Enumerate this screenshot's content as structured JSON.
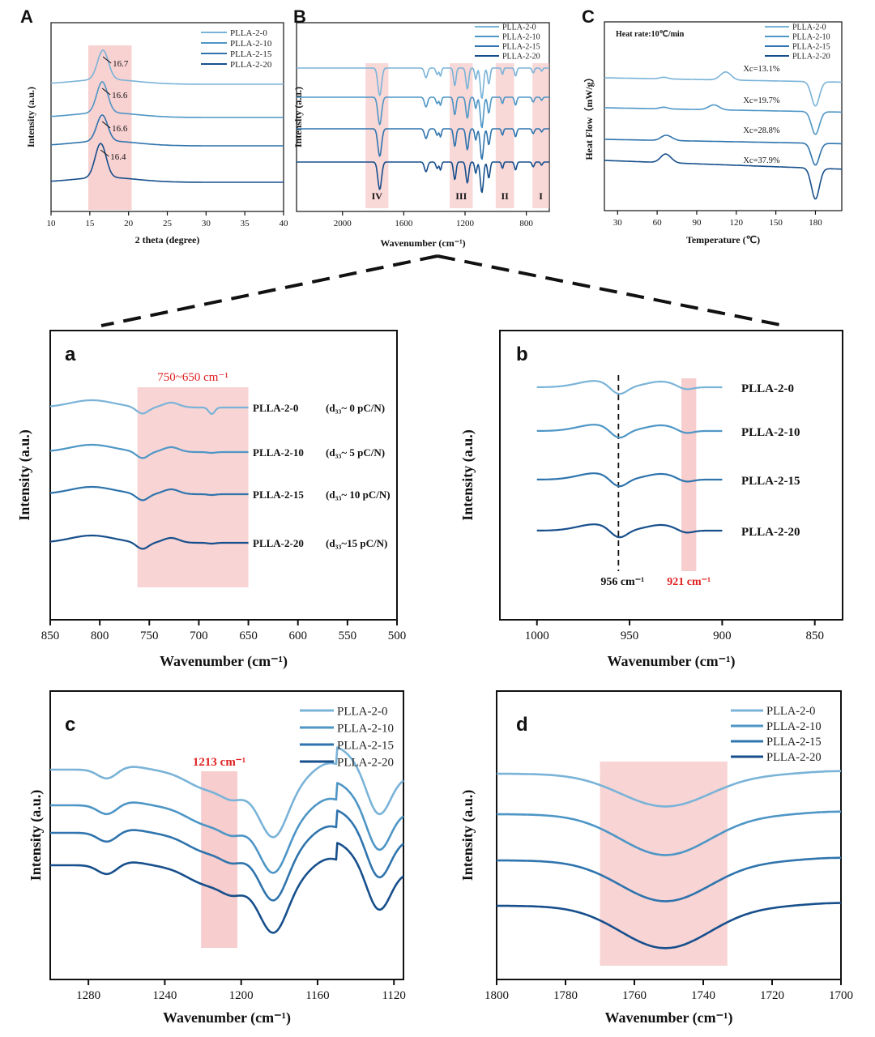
{
  "colors": {
    "s1": "#7ab3d8",
    "s2": "#4e96c6",
    "s3": "#2f74ad",
    "s4": "#174f8c",
    "highlight": "#f4b8b8",
    "red": "#e02020"
  },
  "chart_data": [
    {
      "id": "A",
      "letter": "A",
      "type": "line",
      "xlabel": "2 theta (degree)",
      "ylabel": "Intensity (a.u.)",
      "xlim": [
        10,
        40
      ],
      "xticks": [
        "10",
        "15",
        "20",
        "25",
        "30",
        "35",
        "40"
      ],
      "legend": [
        "PLLA-2-0",
        "PLLA-2-10",
        "PLLA-2-15",
        "PLLA-2-20"
      ],
      "peaks": [
        "16.7",
        "16.6",
        "16.6",
        "16.4"
      ],
      "highlight_range": [
        14.8,
        20.4
      ]
    },
    {
      "id": "B",
      "letter": "B",
      "type": "line",
      "xlabel": "Wavenumber (cm⁻¹)",
      "ylabel": "Intensity (a.u.)",
      "xlim": [
        2300,
        650
      ],
      "xticks": [
        "2000",
        "1600",
        "1200",
        "800"
      ],
      "legend": [
        "PLLA-2-0",
        "PLLA-2-10",
        "PLLA-2-15",
        "PLLA-2-20"
      ],
      "regions": [
        {
          "label": "IV",
          "range": [
            1850,
            1700
          ]
        },
        {
          "label": "III",
          "range": [
            1300,
            1150
          ]
        },
        {
          "label": "II",
          "range": [
            1000,
            880
          ]
        },
        {
          "label": "I",
          "range": [
            760,
            650
          ]
        }
      ]
    },
    {
      "id": "C",
      "letter": "C",
      "type": "line",
      "xlabel": "Temperature (℃)",
      "ylabel": "Heat Flow（mW/g）",
      "xlim": [
        20,
        200
      ],
      "xticks": [
        "30",
        "60",
        "90",
        "120",
        "150",
        "180"
      ],
      "note": "Heat rate:10℃/min",
      "legend": [
        "PLLA-2-0",
        "PLLA-2-10",
        "PLLA-2-15",
        "PLLA-2-20"
      ],
      "xc": [
        "Xc=13.1%",
        "Xc=19.7%",
        "Xc=28.8%",
        "Xc=37.9%"
      ]
    },
    {
      "id": "a",
      "letter": "a",
      "type": "line",
      "xlabel": "Wavenumber (cm⁻¹)",
      "ylabel": "Intensity (a.u.)",
      "xlim": [
        850,
        500
      ],
      "xticks": [
        "850",
        "800",
        "750",
        "700",
        "650",
        "600",
        "550",
        "500"
      ],
      "band_label": "750~650 cm⁻¹",
      "highlight_range": [
        762,
        650
      ],
      "series_labels": [
        "PLLA-2-0",
        "PLLA-2-10",
        "PLLA-2-15",
        "PLLA-2-20"
      ],
      "d33": [
        "(d₃₃~ 0 pC/N)",
        "(d₃₃~ 5 pC/N)",
        "(d₃₃~ 10 pC/N)",
        "(d₃₃~15 pC/N)"
      ]
    },
    {
      "id": "b",
      "letter": "b",
      "type": "line",
      "xlabel": "Wavenumber (cm⁻¹)",
      "ylabel": "Intensity (a.u.)",
      "xlim": [
        1020,
        835
      ],
      "xticks": [
        "1000",
        "950",
        "900",
        "850"
      ],
      "series_labels": [
        "PLLA-2-0",
        "PLLA-2-10",
        "PLLA-2-15",
        "PLLA-2-20"
      ],
      "marker_956": "956 cm⁻¹",
      "marker_921": "921 cm⁻¹",
      "highlight_range": [
        922,
        914
      ]
    },
    {
      "id": "c",
      "letter": "c",
      "type": "line",
      "xlabel": "Wavenumber (cm⁻¹)",
      "ylabel": "Intensity (a.u.)",
      "xlim": [
        1300,
        1115
      ],
      "xticks": [
        "1280",
        "1240",
        "1200",
        "1160",
        "1120"
      ],
      "legend": [
        "PLLA-2-0",
        "PLLA-2-10",
        "PLLA-2-15",
        "PLLA-2-20"
      ],
      "band_label": "1213 cm⁻¹",
      "highlight_range": [
        1221,
        1202
      ]
    },
    {
      "id": "d",
      "letter": "d",
      "type": "line",
      "xlabel": "Wavenumber (cm⁻¹)",
      "ylabel": "Intensity (a.u.)",
      "xlim": [
        1800,
        1700
      ],
      "xticks": [
        "1800",
        "1780",
        "1760",
        "1740",
        "1720",
        "1700"
      ],
      "legend": [
        "PLLA-2-0",
        "PLLA-2-10",
        "PLLA-2-15",
        "PLLA-2-20"
      ],
      "highlight_range": [
        1770,
        1733
      ]
    }
  ]
}
